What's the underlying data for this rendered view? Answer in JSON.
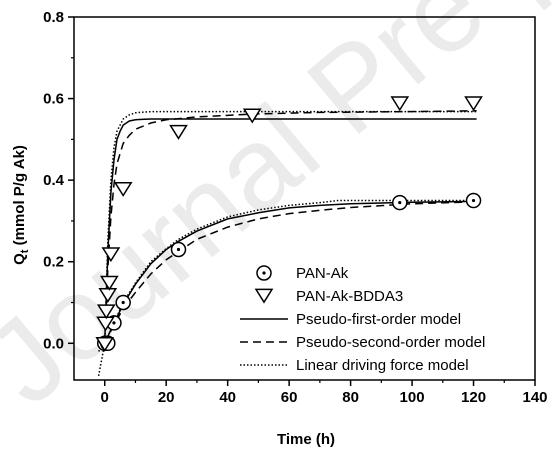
{
  "watermark": "Journal Pre-proof",
  "chart_data": {
    "type": "scatter",
    "xlabel": "Time (h)",
    "ylabel_main": "Q",
    "ylabel_sub": "t",
    "ylabel_rest": " (mmol P/g Ak)",
    "xlim": [
      -10,
      140
    ],
    "ylim": [
      -0.09,
      0.8
    ],
    "x_ticks": [
      0,
      20,
      40,
      60,
      80,
      100,
      120,
      140
    ],
    "y_ticks": [
      0.0,
      0.2,
      0.4,
      0.6,
      0.8
    ],
    "y_tick_labels": [
      "0.0",
      "0.2",
      "0.4",
      "0.6",
      "0.8"
    ],
    "grid": false,
    "legend_position": "bottom-right",
    "series": [
      {
        "name": "PAN-Ak",
        "kind": "points",
        "marker": "circle-dot",
        "x": [
          0,
          1,
          3,
          6,
          24,
          96,
          120
        ],
        "y": [
          0.0,
          0.0,
          0.05,
          0.1,
          0.23,
          0.345,
          0.35
        ]
      },
      {
        "name": "PAN-Ak-BDDA3",
        "kind": "points",
        "marker": "triangle-down",
        "x": [
          0,
          0.25,
          0.5,
          1,
          1.5,
          2,
          6,
          24,
          48,
          96,
          120
        ],
        "y": [
          0.0,
          0.05,
          0.08,
          0.12,
          0.15,
          0.22,
          0.38,
          0.52,
          0.56,
          0.59,
          0.59
        ]
      },
      {
        "name": "Pseudo-first-order model",
        "kind": "line",
        "dash": "solid",
        "curves": [
          {
            "x": [
              0,
              1,
              2,
              3,
              4,
              5,
              6,
              8,
              10,
              12,
              15,
              20,
              30,
              50,
              121
            ],
            "y": [
              0.0,
              0.22,
              0.37,
              0.45,
              0.5,
              0.52,
              0.535,
              0.545,
              0.548,
              0.549,
              0.55,
              0.55,
              0.55,
              0.55,
              0.55
            ]
          },
          {
            "x": [
              0,
              3,
              6,
              10,
              15,
              20,
              24,
              30,
              40,
              50,
              60,
              70,
              80,
              100,
              121
            ],
            "y": [
              0.0,
              0.05,
              0.095,
              0.145,
              0.195,
              0.23,
              0.25,
              0.275,
              0.305,
              0.32,
              0.332,
              0.338,
              0.342,
              0.346,
              0.348
            ]
          }
        ]
      },
      {
        "name": "Pseudo-second-order model",
        "kind": "line",
        "dash": "dashed",
        "curves": [
          {
            "x": [
              0,
              1,
              2,
              3,
              4,
              6,
              8,
              10,
              15,
              20,
              30,
              48,
              70,
              100,
              121
            ],
            "y": [
              0.0,
              0.18,
              0.31,
              0.39,
              0.44,
              0.49,
              0.51,
              0.525,
              0.54,
              0.548,
              0.555,
              0.562,
              0.566,
              0.568,
              0.57
            ]
          },
          {
            "x": [
              0,
              3,
              6,
              10,
              15,
              20,
              24,
              30,
              40,
              50,
              60,
              70,
              80,
              100,
              121
            ],
            "y": [
              0.0,
              0.045,
              0.085,
              0.125,
              0.17,
              0.205,
              0.225,
              0.255,
              0.285,
              0.305,
              0.318,
              0.326,
              0.333,
              0.342,
              0.347
            ]
          }
        ]
      },
      {
        "name": "Linear driving force model",
        "kind": "line",
        "dash": "dotted",
        "curves": [
          {
            "x": [
              -2,
              0,
              1,
              2,
              3,
              4,
              6,
              8,
              10,
              13,
              16,
              20,
              30,
              50,
              121
            ],
            "y": [
              -0.08,
              0.0,
              0.25,
              0.4,
              0.48,
              0.52,
              0.55,
              0.56,
              0.565,
              0.567,
              0.568,
              0.568,
              0.568,
              0.568,
              0.568
            ]
          },
          {
            "x": [
              -2,
              0,
              3,
              6,
              10,
              15,
              20,
              24,
              30,
              40,
              50,
              60,
              70,
              76,
              80,
              100,
              121
            ],
            "y": [
              -0.02,
              0.0,
              0.05,
              0.1,
              0.148,
              0.2,
              0.232,
              0.255,
              0.28,
              0.31,
              0.327,
              0.338,
              0.345,
              0.35,
              0.35,
              0.35,
              0.35
            ]
          }
        ]
      }
    ]
  }
}
